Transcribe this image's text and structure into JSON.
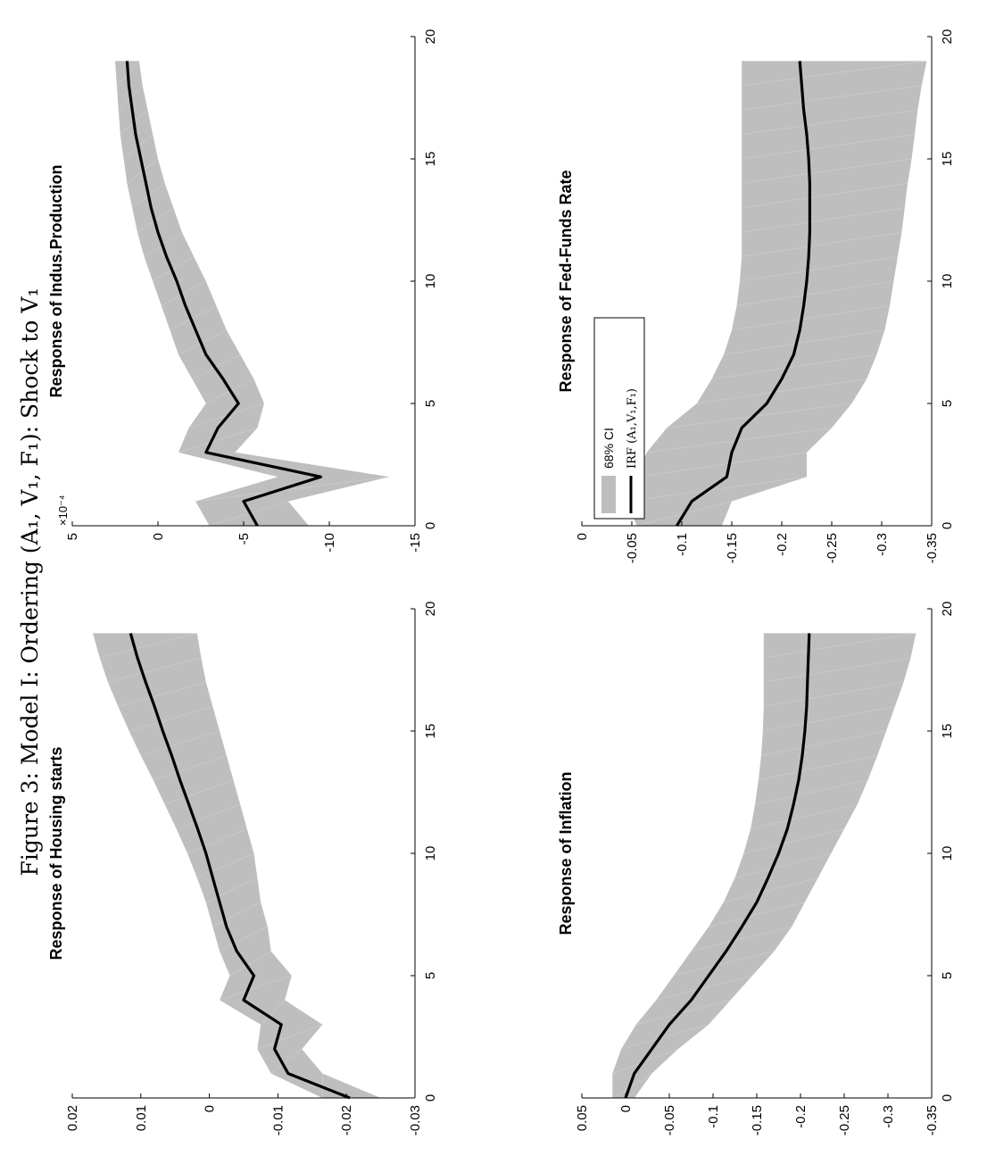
{
  "figure_title": "Figure 3: Model I: Ordering (A₁, V₁, F₁): Shock to V₁",
  "legend": {
    "band_label": "68% CI",
    "line_label": "IRF (A₁,V₁,F₁)",
    "band_color": "#bebebe",
    "line_color": "#000000"
  },
  "colors": {
    "band": "#bebebe",
    "line": "#000000",
    "axis": "#000000",
    "background": "#ffffff"
  },
  "chart_data": [
    {
      "type": "area",
      "title": "Response of Housing starts",
      "xlabel": "",
      "ylabel": "",
      "xlim": [
        0,
        20
      ],
      "ylim": [
        -0.03,
        0.02
      ],
      "xticks": [
        0,
        5,
        10,
        15,
        20
      ],
      "yticks": [
        0.02,
        0.01,
        0,
        -0.01,
        -0.02,
        -0.03
      ],
      "ytick_labels": [
        "0.02",
        "0.01",
        "0",
        "-0.01",
        "-0.02",
        "-0.03"
      ],
      "x": [
        0,
        1,
        2,
        3,
        4,
        5,
        6,
        7,
        8,
        9,
        10,
        11,
        12,
        13,
        14,
        15,
        16,
        17,
        18,
        19
      ],
      "series": [
        {
          "role": "irf",
          "values": [
            -0.0205,
            -0.0115,
            -0.0095,
            -0.0105,
            -0.005,
            -0.0065,
            -0.004,
            -0.0025,
            -0.0015,
            -0.0005,
            0.0005,
            0.0017,
            0.003,
            0.0043,
            0.0055,
            0.0068,
            0.008,
            0.0093,
            0.0105,
            0.0115
          ]
        },
        {
          "role": "ci_upper",
          "values": [
            -0.0165,
            -0.009,
            -0.007,
            -0.0075,
            -0.0015,
            -0.003,
            -0.0015,
            -0.0005,
            0.0005,
            0.0018,
            0.0032,
            0.0048,
            0.0065,
            0.0082,
            0.01,
            0.0117,
            0.0133,
            0.0148,
            0.016,
            0.017
          ]
        },
        {
          "role": "ci_lower",
          "values": [
            -0.025,
            -0.0165,
            -0.0135,
            -0.0165,
            -0.011,
            -0.012,
            -0.009,
            -0.0085,
            -0.0075,
            -0.007,
            -0.0065,
            -0.0055,
            -0.0045,
            -0.0035,
            -0.0025,
            -0.0015,
            -0.0005,
            0.0005,
            0.0012,
            0.0018
          ]
        }
      ],
      "grid": false,
      "legend": false
    },
    {
      "type": "area",
      "title": "Response of Indus.Production",
      "xlabel": "",
      "ylabel": "",
      "xlim": [
        0,
        20
      ],
      "ylim": [
        -15,
        5
      ],
      "yscale_label": "×10⁻⁴",
      "xticks": [
        0,
        5,
        10,
        15,
        20
      ],
      "yticks": [
        5,
        0,
        -5,
        -10,
        -15
      ],
      "ytick_labels": [
        "5",
        "0",
        "-5",
        "-10",
        "-15"
      ],
      "x": [
        0,
        1,
        2,
        3,
        4,
        5,
        6,
        7,
        8,
        9,
        10,
        11,
        12,
        13,
        14,
        15,
        16,
        17,
        18,
        19
      ],
      "series": [
        {
          "role": "irf",
          "values": [
            -5.8,
            -5.0,
            -9.5,
            -2.8,
            -3.5,
            -4.7,
            -3.8,
            -2.8,
            -2.2,
            -1.6,
            -1.1,
            -0.5,
            0.0,
            0.4,
            0.7,
            1.0,
            1.3,
            1.5,
            1.7,
            1.8
          ]
        },
        {
          "role": "ci_upper",
          "values": [
            -3.0,
            -2.2,
            -7.0,
            -1.2,
            -1.8,
            -2.8,
            -2.0,
            -1.2,
            -0.7,
            -0.2,
            0.3,
            0.8,
            1.2,
            1.5,
            1.8,
            2.0,
            2.2,
            2.3,
            2.4,
            2.5
          ]
        },
        {
          "role": "ci_lower",
          "values": [
            -8.8,
            -7.6,
            -13.5,
            -4.5,
            -5.8,
            -6.2,
            -5.6,
            -4.8,
            -4.0,
            -3.4,
            -2.8,
            -2.1,
            -1.4,
            -0.9,
            -0.4,
            0.0,
            0.3,
            0.6,
            0.9,
            1.1
          ]
        }
      ],
      "grid": false,
      "legend": false
    },
    {
      "type": "area",
      "title": "Response of Inflation",
      "xlabel": "",
      "ylabel": "",
      "xlim": [
        0,
        20
      ],
      "ylim": [
        -0.35,
        0.05
      ],
      "xticks": [
        0,
        5,
        10,
        15,
        20
      ],
      "yticks": [
        0.05,
        0,
        -0.05,
        -0.1,
        -0.15,
        -0.2,
        -0.25,
        -0.3,
        -0.35
      ],
      "ytick_labels": [
        "0.05",
        "0",
        "-0.05",
        "-0.1",
        "-0.15",
        "-0.2",
        "-0.25",
        "-0.3",
        "-0.35"
      ],
      "x": [
        0,
        1,
        2,
        3,
        4,
        5,
        6,
        7,
        8,
        9,
        10,
        11,
        12,
        13,
        14,
        15,
        16,
        17,
        18,
        19
      ],
      "series": [
        {
          "role": "irf",
          "values": [
            0.0,
            -0.01,
            -0.03,
            -0.05,
            -0.075,
            -0.095,
            -0.115,
            -0.133,
            -0.15,
            -0.163,
            -0.175,
            -0.185,
            -0.192,
            -0.198,
            -0.202,
            -0.205,
            -0.207,
            -0.208,
            -0.209,
            -0.21
          ]
        },
        {
          "role": "ci_upper",
          "values": [
            0.015,
            0.015,
            0.005,
            -0.012,
            -0.035,
            -0.055,
            -0.075,
            -0.095,
            -0.112,
            -0.125,
            -0.135,
            -0.143,
            -0.148,
            -0.152,
            -0.155,
            -0.157,
            -0.158,
            -0.158,
            -0.158,
            -0.158
          ]
        },
        {
          "role": "ci_lower",
          "values": [
            -0.01,
            -0.03,
            -0.06,
            -0.095,
            -0.12,
            -0.145,
            -0.17,
            -0.19,
            -0.205,
            -0.22,
            -0.235,
            -0.25,
            -0.265,
            -0.277,
            -0.288,
            -0.298,
            -0.308,
            -0.318,
            -0.326,
            -0.332
          ]
        }
      ],
      "grid": false,
      "legend": false
    },
    {
      "type": "area",
      "title": "Response of Fed-Funds Rate",
      "xlabel": "",
      "ylabel": "",
      "xlim": [
        0,
        20
      ],
      "ylim": [
        -0.35,
        0
      ],
      "xticks": [
        0,
        5,
        10,
        15,
        20
      ],
      "yticks": [
        0,
        -0.05,
        -0.1,
        -0.15,
        -0.2,
        -0.25,
        -0.3,
        -0.35
      ],
      "ytick_labels": [
        "0",
        "-0.05",
        "-0.1",
        "-0.15",
        "-0.2",
        "-0.25",
        "-0.3",
        "-0.35"
      ],
      "x": [
        0,
        1,
        2,
        3,
        4,
        5,
        6,
        7,
        8,
        9,
        10,
        11,
        12,
        13,
        14,
        15,
        16,
        17,
        18,
        19
      ],
      "series": [
        {
          "role": "irf",
          "values": [
            -0.095,
            -0.11,
            -0.145,
            -0.15,
            -0.16,
            -0.185,
            -0.2,
            -0.212,
            -0.218,
            -0.222,
            -0.225,
            -0.227,
            -0.228,
            -0.228,
            -0.228,
            -0.227,
            -0.225,
            -0.222,
            -0.22,
            -0.218
          ]
        },
        {
          "role": "ci_upper",
          "values": [
            -0.055,
            -0.045,
            -0.055,
            -0.065,
            -0.085,
            -0.115,
            -0.13,
            -0.142,
            -0.15,
            -0.155,
            -0.158,
            -0.16,
            -0.16,
            -0.16,
            -0.16,
            -0.16,
            -0.16,
            -0.16,
            -0.16,
            -0.16
          ]
        },
        {
          "role": "ci_lower",
          "values": [
            -0.14,
            -0.15,
            -0.225,
            -0.225,
            -0.25,
            -0.27,
            -0.285,
            -0.295,
            -0.303,
            -0.308,
            -0.312,
            -0.316,
            -0.32,
            -0.323,
            -0.326,
            -0.33,
            -0.333,
            -0.336,
            -0.34,
            -0.345
          ]
        }
      ],
      "grid": false,
      "legend": true,
      "legend_loc": "upper-left"
    }
  ]
}
